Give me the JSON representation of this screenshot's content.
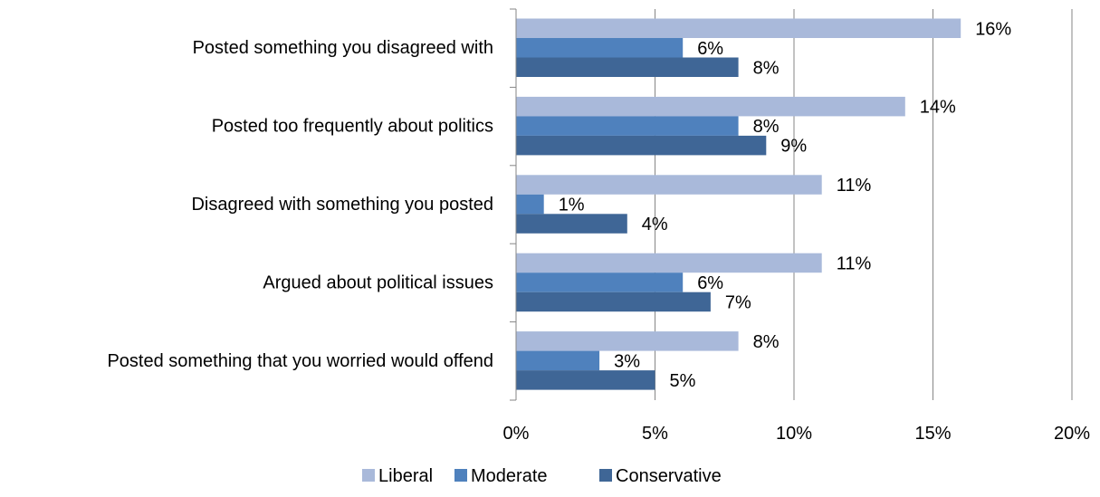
{
  "chart_data": {
    "type": "bar",
    "orientation": "horizontal",
    "title": "",
    "xlabel": "",
    "ylabel": "",
    "xlim": [
      0,
      20
    ],
    "x_ticks": [
      0,
      5,
      10,
      15,
      20
    ],
    "x_tick_labels": [
      "0%",
      "5%",
      "10%",
      "15%",
      "20%"
    ],
    "grid": "vertical major gridlines",
    "legend_position": "bottom",
    "categories": [
      "Posted something you disagreed with",
      "Posted too frequently about politics",
      "Disagreed with something you posted",
      "Argued about political issues",
      "Posted something that you worried would offend"
    ],
    "series": [
      {
        "name": "Liberal",
        "color": "#A9B9DA",
        "values": [
          16,
          14,
          11,
          11,
          8
        ],
        "labels": [
          "16%",
          "14%",
          "11%",
          "11%",
          "8%"
        ]
      },
      {
        "name": "Moderate",
        "color": "#4F81BD",
        "values": [
          6,
          8,
          1,
          6,
          3
        ],
        "labels": [
          "6%",
          "8%",
          "1%",
          "6%",
          "3%"
        ]
      },
      {
        "name": "Conservative",
        "color": "#3F6696",
        "values": [
          8,
          9,
          4,
          7,
          5
        ],
        "labels": [
          "8%",
          "9%",
          "4%",
          "7%",
          "5%"
        ]
      }
    ]
  }
}
